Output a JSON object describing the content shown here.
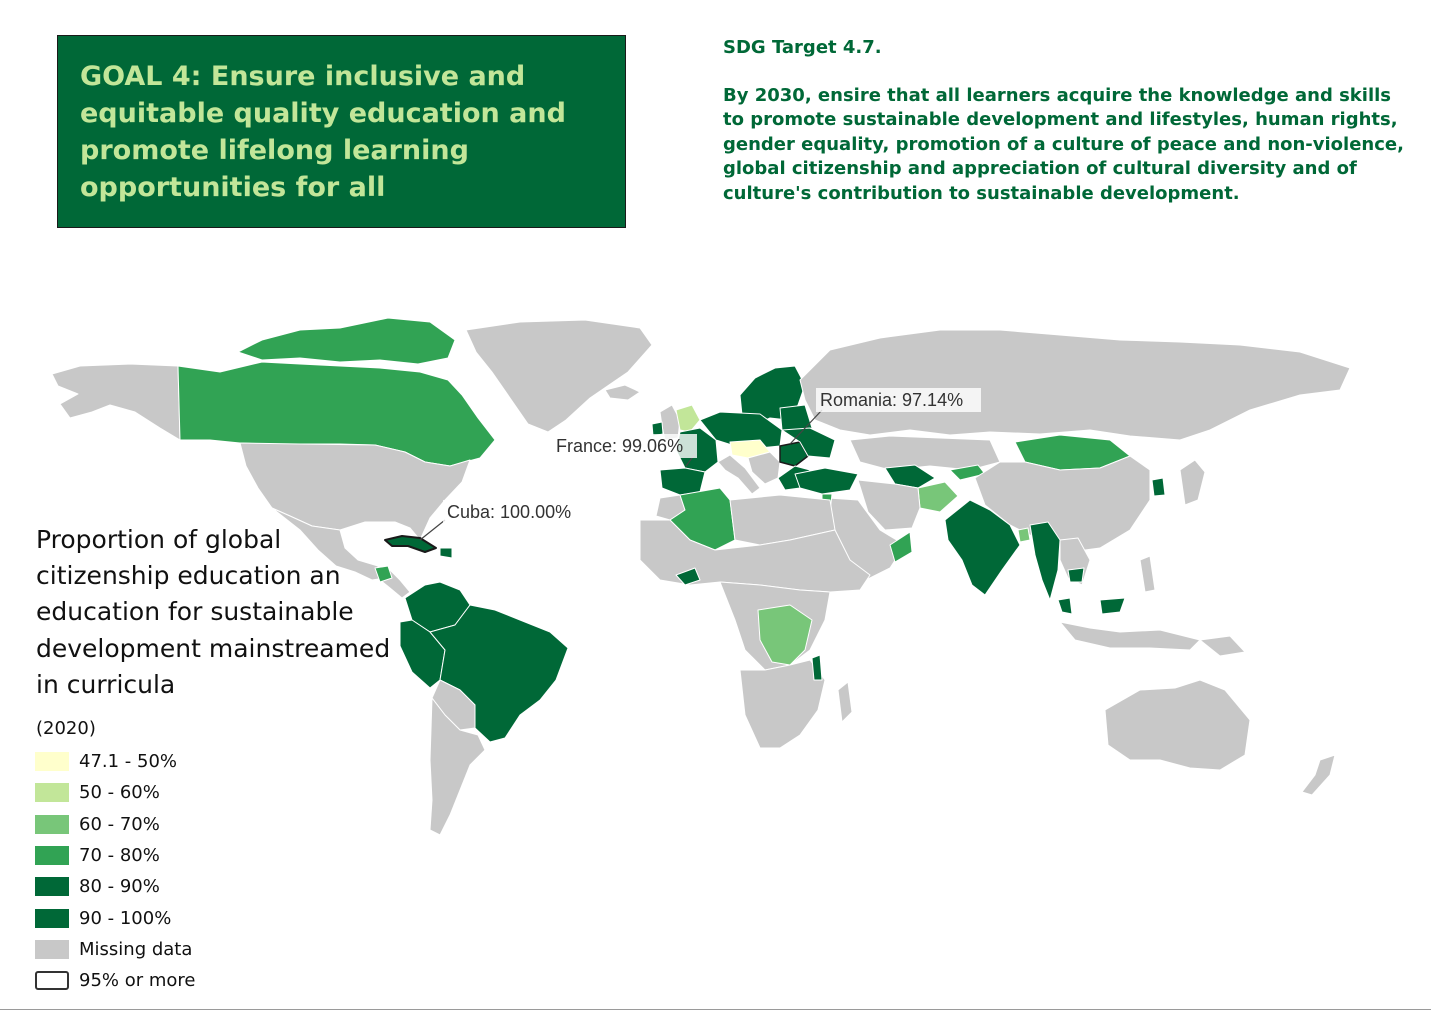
{
  "goal": {
    "title": "GOAL 4: Ensure inclusive and equitable quality education and promote lifelong learning opportunities for all"
  },
  "target": {
    "heading": "SDG Target 4.7.",
    "text": "By 2030, ensire that all learners acquire the knowledge and skills to promote sustainable development and lifestyles, human rights, gender equality, promotion of a culture of peace and non-violence, global citizenship and appreciation of cultural diversity and of culture's contribution to sustainable development."
  },
  "legend": {
    "title": "Proportion of global citizenship education an education for sustainable development mainstreamed in curricula",
    "year": "(2020)",
    "items": [
      {
        "label": "47.1 - 50%",
        "color": "#ffffcc"
      },
      {
        "label": "50 - 60%",
        "color": "#c2e699"
      },
      {
        "label": "60 - 70%",
        "color": "#78c679"
      },
      {
        "label": "70 - 80%",
        "color": "#31a354"
      },
      {
        "label": "80 - 90%",
        "color": "#006837"
      },
      {
        "label": "90 - 100%",
        "color": "#006837"
      },
      {
        "label": "Missing data",
        "color": "#c8c8c8"
      },
      {
        "label": "95% or more",
        "color": "#ffffff"
      }
    ]
  },
  "annotations": [
    {
      "label": "Romania: 97.14%"
    },
    {
      "label": "France: 99.06%"
    },
    {
      "label": "Cuba: 100.00%"
    }
  ],
  "colors": {
    "missing": "#c8c8c8",
    "dark": "#006837",
    "mid": "#31a354",
    "light": "#78c679",
    "pale": "#c2e699",
    "palest": "#ffffcc"
  }
}
